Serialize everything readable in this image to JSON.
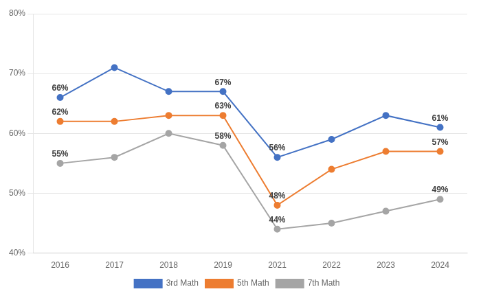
{
  "chart_data": {
    "type": "line",
    "categories": [
      "2016",
      "2017",
      "2018",
      "2019",
      "2021",
      "2022",
      "2023",
      "2024"
    ],
    "series": [
      {
        "name": "3rd Math",
        "color": "#4472C4",
        "marker": "circle",
        "values": [
          66,
          71,
          67,
          67,
          56,
          59,
          63,
          61
        ],
        "value_labels": [
          "66%",
          null,
          null,
          "67%",
          "56%",
          null,
          null,
          "61%"
        ]
      },
      {
        "name": "5th Math",
        "color": "#ED7D31",
        "marker": "circle",
        "values": [
          62,
          62,
          63,
          63,
          48,
          54,
          57,
          57
        ],
        "value_labels": [
          "62%",
          null,
          null,
          "63%",
          "48%",
          null,
          null,
          "57%"
        ]
      },
      {
        "name": "7th Math",
        "color": "#A5A5A5",
        "marker": "circle",
        "values": [
          55,
          56,
          60,
          58,
          44,
          45,
          47,
          49
        ],
        "value_labels": [
          "55%",
          null,
          null,
          "58%",
          "44%",
          null,
          null,
          "49%"
        ]
      }
    ],
    "ylim": [
      40,
      80
    ],
    "yticks": [
      {
        "value": 40,
        "label": "40%"
      },
      {
        "value": 50,
        "label": "50%"
      },
      {
        "value": 60,
        "label": "60%"
      },
      {
        "value": 70,
        "label": "70%"
      },
      {
        "value": 80,
        "label": "80%"
      }
    ],
    "grid": "y",
    "legend": "bottom",
    "data_labels": true
  }
}
